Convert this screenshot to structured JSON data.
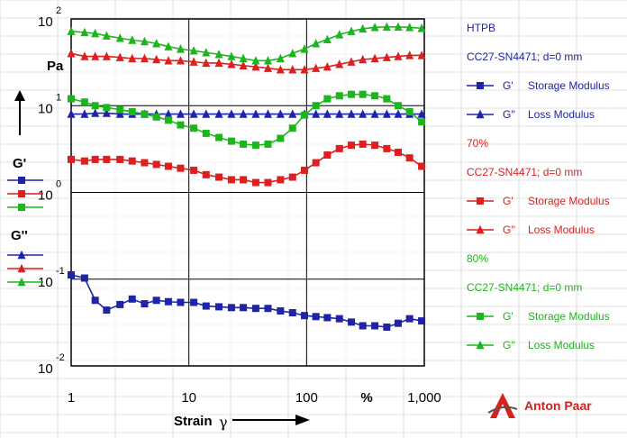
{
  "chart_data": {
    "type": "line",
    "x_scale": "log",
    "y_scale": "log",
    "xlim": [
      1,
      1000
    ],
    "ylim": [
      0.01,
      100
    ],
    "grid": true,
    "x_ticks": [
      {
        "value": 1,
        "label": "1"
      },
      {
        "value": 10,
        "label": "10"
      },
      {
        "value": 100,
        "label": "100"
      },
      {
        "value": 1000,
        "label": "1,000"
      }
    ],
    "x_unit": "%",
    "x_label_text": "Strain",
    "x_label_symbol": "γ",
    "y_ticks": [
      {
        "value": 100,
        "base": "10",
        "exp": "2"
      },
      {
        "value": 10,
        "base": "10",
        "exp": "1"
      },
      {
        "value": 1,
        "base": "10",
        "exp": "0"
      },
      {
        "value": 0.1,
        "base": "10",
        "exp": "-1"
      },
      {
        "value": 0.01,
        "base": "10",
        "exp": "-2"
      }
    ],
    "y_unit": "Pa",
    "y_legend_storage": "G'",
    "y_legend_loss": "G''",
    "legend_groups": [
      {
        "title": "HTPB",
        "subtitle": "CC27-SN4471; d=0 mm",
        "color": "#1f24a6",
        "storage_label": "G'",
        "storage_desc": "Storage Modulus",
        "loss_label": "G''",
        "loss_desc": "Loss Modulus"
      },
      {
        "title": "70%",
        "subtitle": "CC27-SN4471; d=0 mm",
        "color": "#dc1f1f",
        "storage_label": "G'",
        "storage_desc": "Storage Modulus",
        "loss_label": "G''",
        "loss_desc": "Loss Modulus"
      },
      {
        "title": "80%",
        "subtitle": "CC27-SN4471; d=0 mm",
        "color": "#1db51d",
        "storage_label": "G'",
        "storage_desc": "Storage Modulus",
        "loss_label": "G''",
        "loss_desc": "Loss Modulus"
      }
    ],
    "series": [
      {
        "group": 0,
        "kind": "storage",
        "marker": "square",
        "color": "#1f24a6",
        "x": [
          1,
          1.3,
          1.6,
          2.0,
          2.6,
          3.3,
          4.2,
          5.3,
          6.7,
          8.5,
          11,
          14,
          18,
          23,
          29,
          37,
          47,
          60,
          76,
          96,
          120,
          150,
          190,
          240,
          300,
          380,
          480,
          600,
          750,
          950
        ],
        "y": [
          0.112,
          0.103,
          0.057,
          0.044,
          0.051,
          0.059,
          0.052,
          0.057,
          0.055,
          0.054,
          0.054,
          0.049,
          0.048,
          0.047,
          0.047,
          0.046,
          0.046,
          0.043,
          0.041,
          0.038,
          0.037,
          0.036,
          0.035,
          0.032,
          0.029,
          0.029,
          0.028,
          0.031,
          0.035,
          0.033
        ]
      },
      {
        "group": 0,
        "kind": "loss",
        "marker": "triangle",
        "color": "#1f24a6",
        "x": [
          1,
          1.3,
          1.6,
          2.0,
          2.6,
          3.3,
          4.2,
          5.3,
          6.7,
          8.5,
          11,
          14,
          18,
          23,
          29,
          37,
          47,
          60,
          76,
          96,
          120,
          150,
          190,
          240,
          300,
          380,
          480,
          600,
          750,
          950
        ],
        "y": [
          8.0,
          8.0,
          8.2,
          8.2,
          8.0,
          8.0,
          8.0,
          8.0,
          8.0,
          8.0,
          8.0,
          8.0,
          8.0,
          8.0,
          8.0,
          8.0,
          8.0,
          8.0,
          8.0,
          8.0,
          8.0,
          8.0,
          8.0,
          8.0,
          8.0,
          8.0,
          8.0,
          8.0,
          8.0,
          8.0
        ]
      },
      {
        "group": 1,
        "kind": "storage",
        "marker": "square",
        "color": "#dc1f1f",
        "x": [
          1,
          1.3,
          1.6,
          2.0,
          2.6,
          3.3,
          4.2,
          5.3,
          6.7,
          8.5,
          11,
          14,
          18,
          23,
          29,
          37,
          47,
          60,
          76,
          96,
          120,
          150,
          190,
          240,
          300,
          380,
          480,
          600,
          750,
          950
        ],
        "y": [
          2.4,
          2.3,
          2.4,
          2.4,
          2.4,
          2.3,
          2.2,
          2.1,
          2.0,
          1.9,
          1.8,
          1.6,
          1.5,
          1.4,
          1.4,
          1.3,
          1.3,
          1.4,
          1.5,
          1.8,
          2.2,
          2.7,
          3.2,
          3.5,
          3.6,
          3.5,
          3.2,
          2.9,
          2.5,
          2.0
        ]
      },
      {
        "group": 1,
        "kind": "loss",
        "marker": "triangle",
        "color": "#dc1f1f",
        "x": [
          1,
          1.3,
          1.6,
          2.0,
          2.6,
          3.3,
          4.2,
          5.3,
          6.7,
          8.5,
          11,
          14,
          18,
          23,
          29,
          37,
          47,
          60,
          76,
          96,
          120,
          150,
          190,
          240,
          300,
          380,
          480,
          600,
          750,
          950
        ],
        "y": [
          40,
          37,
          37,
          37,
          36,
          35,
          35,
          34,
          33,
          33,
          32,
          31,
          31,
          30,
          29,
          28,
          27,
          26,
          26,
          26,
          27,
          28,
          30,
          32,
          34,
          35,
          36,
          37,
          38,
          38
        ]
      },
      {
        "group": 2,
        "kind": "storage",
        "marker": "square",
        "color": "#1db51d",
        "x": [
          1,
          1.3,
          1.6,
          2.0,
          2.6,
          3.3,
          4.2,
          5.3,
          6.7,
          8.5,
          11,
          14,
          18,
          23,
          29,
          37,
          47,
          60,
          76,
          96,
          120,
          150,
          190,
          240,
          300,
          380,
          480,
          600,
          750,
          950
        ],
        "y": [
          12,
          11,
          10,
          9.5,
          9,
          8.5,
          8,
          7.4,
          6.8,
          6.0,
          5.5,
          4.8,
          4.3,
          3.9,
          3.6,
          3.5,
          3.6,
          4.2,
          5.5,
          7.8,
          10,
          12,
          13,
          13.5,
          13.5,
          13,
          12,
          10,
          8.5,
          6.5
        ]
      },
      {
        "group": 2,
        "kind": "loss",
        "marker": "triangle",
        "color": "#1db51d",
        "x": [
          1,
          1.3,
          1.6,
          2.0,
          2.6,
          3.3,
          4.2,
          5.3,
          6.7,
          8.5,
          11,
          14,
          18,
          23,
          29,
          37,
          47,
          60,
          76,
          96,
          120,
          150,
          190,
          240,
          300,
          380,
          480,
          600,
          750,
          950
        ],
        "y": [
          72,
          70,
          68,
          64,
          60,
          57,
          55,
          52,
          48,
          45,
          43,
          41,
          39,
          37,
          35,
          33,
          33,
          35,
          40,
          45,
          52,
          58,
          66,
          72,
          77,
          80,
          81,
          81,
          80,
          78
        ]
      }
    ]
  },
  "brand": {
    "name": "Anton Paar"
  }
}
